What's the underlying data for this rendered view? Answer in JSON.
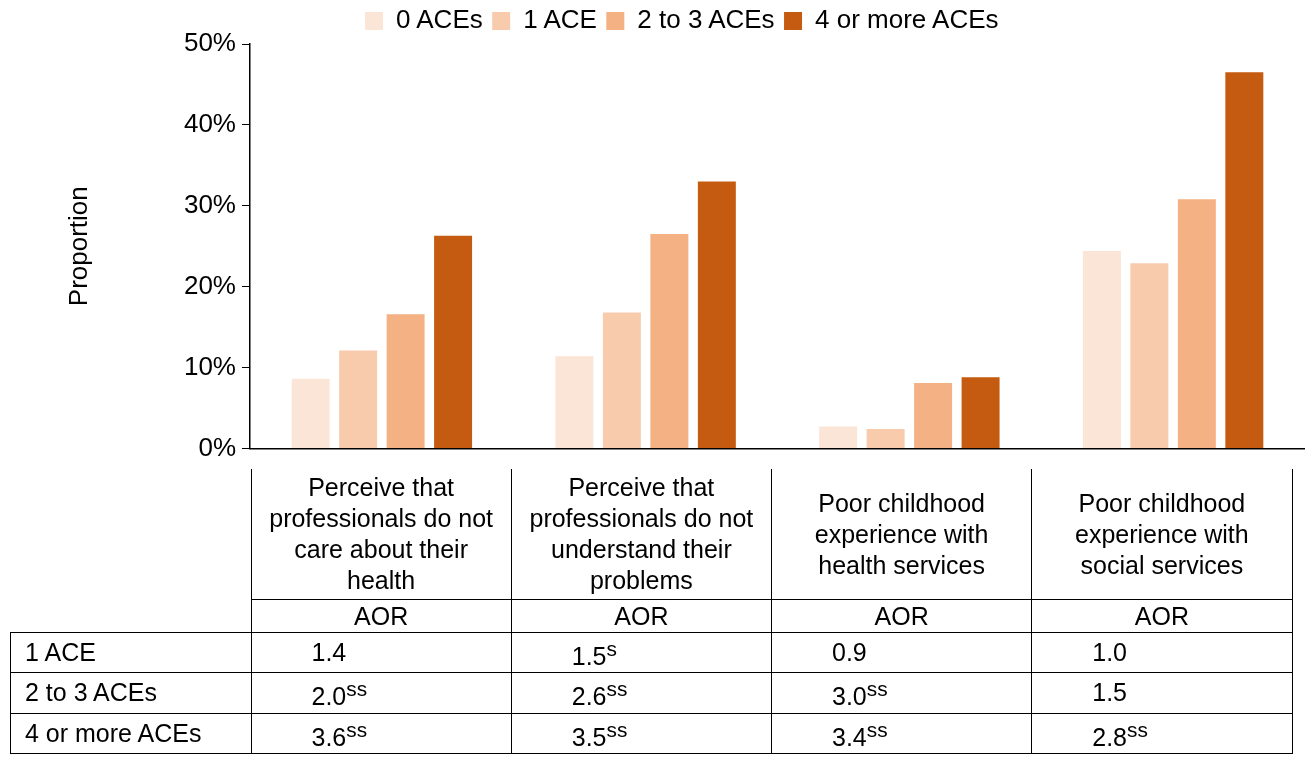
{
  "chart_data": {
    "type": "bar",
    "ylabel": "Proportion",
    "categories": [
      "Perceive that professionals do not care about their health",
      "Perceive that professionals do not understand their problems",
      "Poor childhood experience with health services",
      "Poor childhood experience with social services"
    ],
    "series": [
      {
        "name": "0 ACEs",
        "color": "#fbe5d6",
        "values": [
          8.6,
          11.4,
          2.7,
          24.4
        ]
      },
      {
        "name": "1 ACE",
        "color": "#f8cbad",
        "values": [
          12.1,
          16.8,
          2.4,
          22.9
        ]
      },
      {
        "name": "2 to 3 ACEs",
        "color": "#f4b183",
        "values": [
          16.6,
          26.5,
          8.1,
          30.8
        ]
      },
      {
        "name": "4 or more ACEs",
        "color": "#c55a11",
        "values": [
          26.3,
          33.0,
          8.8,
          46.5
        ]
      }
    ],
    "ylim": [
      0,
      50
    ],
    "yticks": [
      {
        "value": 0,
        "label": "0%"
      },
      {
        "value": 10,
        "label": "10%"
      },
      {
        "value": 20,
        "label": "20%"
      },
      {
        "value": 30,
        "label": "30%"
      },
      {
        "value": 40,
        "label": "40%"
      },
      {
        "value": 50,
        "label": "50%"
      }
    ],
    "grid": false,
    "legend": "top",
    "annotations": [
      "AOR",
      "AOR",
      "AOR",
      "AOR",
      "1 ACE",
      "1.4",
      "1.5$^{s}$",
      "0.9",
      "1.0",
      "2 to 3 ACEs",
      "2.0$^{ss}$",
      "2.6$^{ss}$",
      "3.0$^{ss}$",
      "1.5",
      "4 or more ACEs",
      "3.6$^{ss}$",
      "3.5$^{ss}$",
      "3.4$^{ss}$",
      "2.8$^{ss}$"
    ]
  }
}
